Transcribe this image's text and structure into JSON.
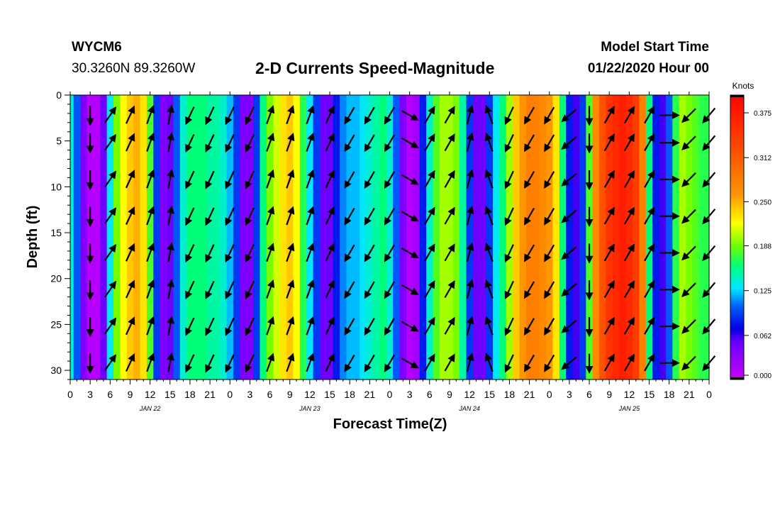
{
  "header": {
    "station": "WYCM6",
    "coords": "30.3260N 89.3260W",
    "title": "2-D Currents Speed-Magnitude",
    "model_start_label": "Model Start Time",
    "model_start_value": "01/22/2020 Hour 00"
  },
  "chart_data": {
    "type": "heatmap",
    "title": "2-D Currents Speed-Magnitude",
    "xlabel": "Forecast Time(Z)",
    "ylabel": "Depth (ft)",
    "x_units": "hours since 2020-01-22 00Z",
    "xlim": [
      0,
      96
    ],
    "ylim": [
      0,
      31
    ],
    "y_inverted": true,
    "x_ticks": [
      0,
      3,
      6,
      9,
      12,
      15,
      18,
      21,
      24,
      27,
      30,
      33,
      36,
      39,
      42,
      45,
      48,
      51,
      54,
      57,
      60,
      63,
      66,
      69,
      72,
      75,
      78,
      81,
      84,
      87,
      90,
      93,
      96
    ],
    "x_tick_labels": [
      "0",
      "3",
      "6",
      "9",
      "12",
      "15",
      "18",
      "21",
      "0",
      "3",
      "6",
      "9",
      "12",
      "15",
      "18",
      "21",
      "0",
      "3",
      "6",
      "9",
      "12",
      "15",
      "18",
      "21",
      "0",
      "3",
      "6",
      "9",
      "12",
      "15",
      "18",
      "21",
      "0"
    ],
    "y_ticks": [
      0,
      5,
      10,
      15,
      20,
      25,
      30
    ],
    "y_tick_labels": [
      "0",
      "5",
      "10",
      "15",
      "20",
      "25",
      "30"
    ],
    "day_labels": [
      {
        "x": 12,
        "text": "JAN 22"
      },
      {
        "x": 36,
        "text": "JAN 23"
      },
      {
        "x": 60,
        "text": "JAN 24"
      },
      {
        "x": 84,
        "text": "JAN 25"
      }
    ],
    "colorbar": {
      "units": "Knots",
      "min": 0.0,
      "max": 0.4,
      "ticks": [
        0.0,
        0.062,
        0.125,
        0.188,
        0.25,
        0.312,
        0.375
      ],
      "tick_labels": [
        "0.000",
        "0.062",
        "0.125",
        "0.188",
        "0.250",
        "0.312",
        "0.375"
      ]
    },
    "speed_profile": {
      "hours": [
        0,
        1,
        2,
        3,
        4,
        5,
        6,
        7,
        8,
        9,
        10,
        11,
        12,
        13,
        14,
        15,
        16,
        17,
        18,
        19,
        20,
        21,
        22,
        23,
        24,
        25,
        26,
        27,
        28,
        29,
        30,
        31,
        32,
        33,
        34,
        35,
        36,
        37,
        38,
        39,
        40,
        41,
        42,
        43,
        44,
        45,
        46,
        47,
        48,
        49,
        50,
        51,
        52,
        53,
        54,
        55,
        56,
        57,
        58,
        59,
        60,
        61,
        62,
        63,
        64,
        65,
        66,
        67,
        68,
        69,
        70,
        71,
        72,
        73,
        74,
        75,
        76,
        77,
        78,
        79,
        80,
        81,
        82,
        83,
        84,
        85,
        86,
        87,
        88,
        89,
        90,
        91,
        92,
        93,
        94,
        95,
        96
      ],
      "knots": [
        0.14,
        0.1,
        0.04,
        0.01,
        0.01,
        0.05,
        0.13,
        0.19,
        0.22,
        0.24,
        0.25,
        0.23,
        0.18,
        0.09,
        0.04,
        0.05,
        0.1,
        0.14,
        0.16,
        0.16,
        0.16,
        0.15,
        0.15,
        0.14,
        0.12,
        0.09,
        0.04,
        0.04,
        0.09,
        0.16,
        0.19,
        0.21,
        0.23,
        0.24,
        0.22,
        0.17,
        0.13,
        0.09,
        0.05,
        0.05,
        0.08,
        0.11,
        0.12,
        0.12,
        0.13,
        0.14,
        0.15,
        0.16,
        0.14,
        0.1,
        0.04,
        0.01,
        0.02,
        0.08,
        0.14,
        0.18,
        0.2,
        0.2,
        0.19,
        0.15,
        0.09,
        0.05,
        0.05,
        0.09,
        0.13,
        0.16,
        0.2,
        0.24,
        0.26,
        0.28,
        0.28,
        0.27,
        0.26,
        0.23,
        0.16,
        0.08,
        0.06,
        0.09,
        0.18,
        0.27,
        0.32,
        0.35,
        0.36,
        0.37,
        0.36,
        0.34,
        0.28,
        0.16,
        0.08,
        0.06,
        0.1,
        0.17,
        0.2,
        0.19,
        0.18,
        0.17,
        0.17
      ]
    },
    "vectors": {
      "columns": [
        {
          "x": 3.0,
          "dir": 180
        },
        {
          "x": 6.0,
          "dir": 35
        },
        {
          "x": 9.0,
          "dir": 25
        },
        {
          "x": 12.0,
          "dir": 20
        },
        {
          "x": 15.0,
          "dir": 10
        },
        {
          "x": 18.0,
          "dir": 205
        },
        {
          "x": 21.0,
          "dir": 205
        },
        {
          "x": 24.0,
          "dir": 205
        },
        {
          "x": 27.0,
          "dir": 205
        },
        {
          "x": 30.0,
          "dir": 20
        },
        {
          "x": 33.0,
          "dir": 20
        },
        {
          "x": 36.0,
          "dir": 20
        },
        {
          "x": 39.0,
          "dir": 25
        },
        {
          "x": 42.0,
          "dir": 210
        },
        {
          "x": 45.0,
          "dir": 210
        },
        {
          "x": 48.0,
          "dir": 210
        },
        {
          "x": 51.0,
          "dir": 120
        },
        {
          "x": 54.0,
          "dir": 30
        },
        {
          "x": 57.0,
          "dir": 30
        },
        {
          "x": 60.0,
          "dir": 15
        },
        {
          "x": 63.0,
          "dir": 340
        },
        {
          "x": 66.0,
          "dir": 205
        },
        {
          "x": 69.0,
          "dir": 210
        },
        {
          "x": 72.0,
          "dir": 210
        },
        {
          "x": 75.0,
          "dir": 230
        },
        {
          "x": 78.0,
          "dir": 180
        },
        {
          "x": 81.0,
          "dir": 30
        },
        {
          "x": 84.0,
          "dir": 30
        },
        {
          "x": 87.0,
          "dir": 30
        },
        {
          "x": 90.0,
          "dir": 90
        },
        {
          "x": 93.0,
          "dir": 225
        },
        {
          "x": 96.0,
          "dir": 220
        }
      ],
      "depths": [
        1,
        4,
        8,
        12,
        16,
        20,
        24,
        28
      ]
    }
  }
}
